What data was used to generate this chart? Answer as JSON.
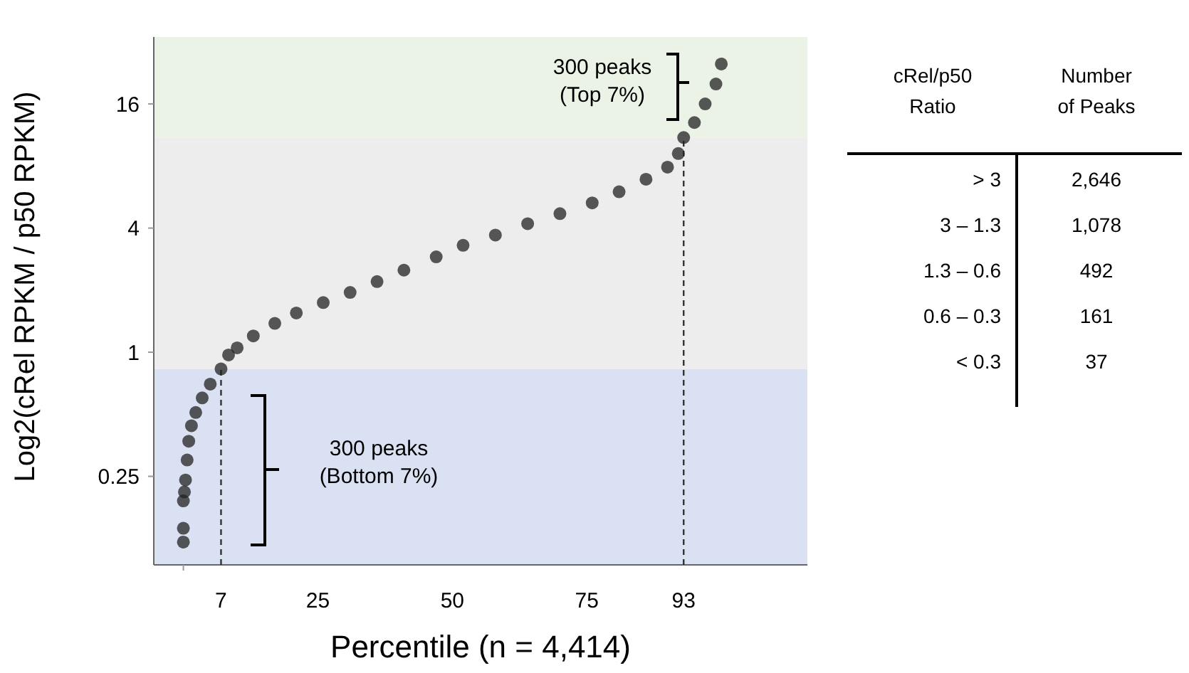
{
  "chart_data": [
    {
      "type": "scatter",
      "xlabel": "Percentile (n = 4,414)",
      "ylabel": "Log2(cRel RPKM / p50 RPKM)",
      "log": "y",
      "marker": "circle",
      "xlim": [
        -5.5,
        116
      ],
      "xticks": [
        {
          "value": 0,
          "label": null
        },
        {
          "value": 7,
          "label": "7"
        },
        25,
        50,
        75,
        {
          "value": 93,
          "label": "93"
        }
      ],
      "ylim": [
        0.093,
        33.8
      ],
      "yticks": [
        0.25,
        1,
        4,
        16
      ],
      "series": [
        {
          "color": "#222222",
          "x": [
            0,
            0,
            0,
            0.2,
            0.4,
            0.7,
            1,
            1.5,
            2.3,
            3.5,
            5,
            7,
            8.4,
            10,
            13,
            17,
            21,
            26,
            31,
            36,
            41,
            47,
            52,
            58,
            64,
            70,
            76,
            81,
            86,
            90,
            92,
            93,
            95,
            97,
            99,
            100
          ],
          "values": [
            0.12,
            0.14,
            0.19,
            0.21,
            0.24,
            0.3,
            0.37,
            0.44,
            0.51,
            0.6,
            0.7,
            0.83,
            0.97,
            1.05,
            1.2,
            1.38,
            1.55,
            1.74,
            1.95,
            2.2,
            2.5,
            2.9,
            3.3,
            3.7,
            4.2,
            4.7,
            5.3,
            6.0,
            6.9,
            7.9,
            9.2,
            11,
            13,
            16,
            20,
            25
          ]
        }
      ],
      "bands": [
        {
          "axis": "y",
          "from": 0.093,
          "to": 0.83,
          "color": "#d9e1f2"
        },
        {
          "axis": "y",
          "from": 0.83,
          "to": 11,
          "color": "#ededed"
        },
        {
          "axis": "y",
          "from": 11,
          "to": 33.8,
          "color": "#ebf3e6"
        }
      ],
      "ref_lines": [
        {
          "axis": "x",
          "value": 7,
          "line_style": "dashed"
        },
        {
          "axis": "x",
          "value": 93,
          "line_style": "dashed"
        }
      ],
      "annotations": [
        "300 peaks (Top 7%)",
        "300 peaks (Bottom 7%)"
      ]
    },
    {
      "type": "other",
      "xlabel": "cRel/p50 Ratio",
      "ylabel": "Number of Peaks",
      "categories": [
        "> 3",
        "3 – 1.3",
        "1.3 – 0.6",
        "0.6 – 0.3",
        "< 0.3"
      ],
      "value_labels": [
        "2,646",
        "1,078",
        "492",
        "161",
        "37"
      ]
    }
  ]
}
